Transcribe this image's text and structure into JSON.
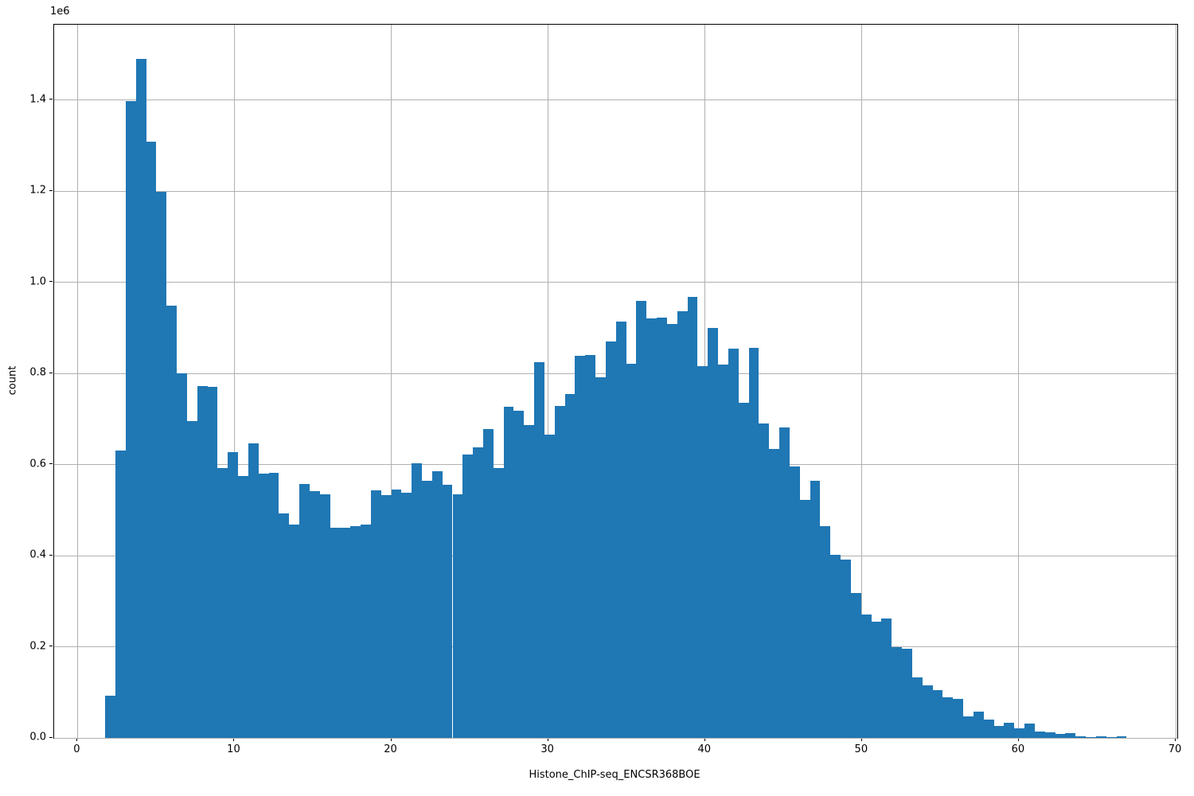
{
  "chart_data": {
    "type": "bar",
    "subtype": "histogram",
    "title": "",
    "xlabel": "Histone_ChIP-seq_ENCSR368BOE",
    "ylabel": "count",
    "offset_text": "1e6",
    "bar_color": "#1f77b4",
    "grid": true,
    "grid_color": "#b0b0b0",
    "xlim": [
      -1.49,
      70.1
    ],
    "ylim": [
      0,
      1565550
    ],
    "x_ticks": [
      0,
      10,
      20,
      30,
      40,
      50,
      60,
      70
    ],
    "x_tick_labels": [
      "0",
      "10",
      "20",
      "30",
      "40",
      "50",
      "60",
      "70"
    ],
    "y_ticks": [
      0,
      200000,
      400000,
      600000,
      800000,
      1000000,
      1200000,
      1400000
    ],
    "y_tick_labels": [
      "0.0",
      "0.2",
      "0.4",
      "0.6",
      "0.8",
      "1.0",
      "1.2",
      "1.4"
    ],
    "bin_start": 1.77,
    "bin_width": 0.651,
    "values": [
      93000,
      630000,
      1398000,
      1491000,
      1308000,
      1199000,
      949000,
      800000,
      696000,
      773000,
      770000,
      593000,
      627000,
      575000,
      647000,
      580000,
      582000,
      493000,
      468000,
      558000,
      542000,
      535000,
      461000,
      462000,
      465000,
      469000,
      544000,
      533000,
      545000,
      538000,
      603000,
      565000,
      586000,
      556000,
      535000,
      622000,
      638000,
      678000,
      593000,
      727000,
      718000,
      687000,
      825000,
      666000,
      728000,
      755000,
      839000,
      841000,
      791000,
      870000,
      914000,
      821000,
      959000,
      921000,
      922000,
      909000,
      936000,
      968000,
      816000,
      900000,
      820000,
      855000,
      736000,
      856000,
      691000,
      634000,
      682000,
      596000,
      523000,
      565000,
      465000,
      402000,
      392000,
      318000,
      271000,
      256000,
      262000,
      200000,
      196000,
      133000,
      116000,
      104000,
      89000,
      86000,
      48000,
      58000,
      41000,
      27000,
      33000,
      21000,
      32000,
      14000,
      13000,
      8000,
      10000,
      3000,
      2000,
      4000,
      2000,
      4000
    ]
  }
}
